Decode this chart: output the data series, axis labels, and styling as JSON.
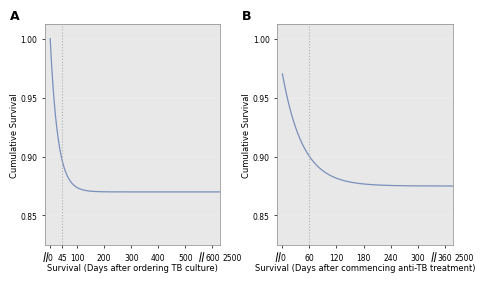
{
  "panel_a": {
    "label": "A",
    "xlabel": "Survival (Days after ordering TB culture)",
    "ylabel": "Cumulative Survival",
    "vline_x": 45,
    "yticks": [
      0.85,
      0.9,
      0.95,
      1.0
    ],
    "ylabels": [
      "0.85",
      "0.90",
      "0.95",
      "1.00"
    ],
    "xticks_shown": [
      0,
      45,
      100,
      200,
      300,
      400,
      500,
      600
    ],
    "xtick_break_val": 2500,
    "ylim": [
      0.825,
      1.012
    ],
    "curve_color": "#7a8fba",
    "bg_color": "#e8e8e8",
    "vline_color": "#aaaaaa"
  },
  "panel_b": {
    "label": "B",
    "xlabel": "Survival (Days after commencing anti-TB treatment)",
    "ylabel": "Cumulative Survival",
    "vline_x": 60,
    "yticks": [
      0.85,
      0.9,
      0.95,
      1.0
    ],
    "ylabels": [
      "0.85",
      "0.90",
      "0.95",
      "1.00"
    ],
    "xticks_shown": [
      0,
      60,
      120,
      180,
      240,
      300,
      360
    ],
    "xtick_break_val": 2500,
    "ylim": [
      0.825,
      1.012
    ],
    "curve_color": "#7a8fba",
    "bg_color": "#e8e8e8",
    "vline_color": "#aaaaaa"
  },
  "fig_bg": "#ffffff",
  "tick_fontsize": 5.5,
  "label_fontsize": 6.0,
  "panel_label_fontsize": 9
}
